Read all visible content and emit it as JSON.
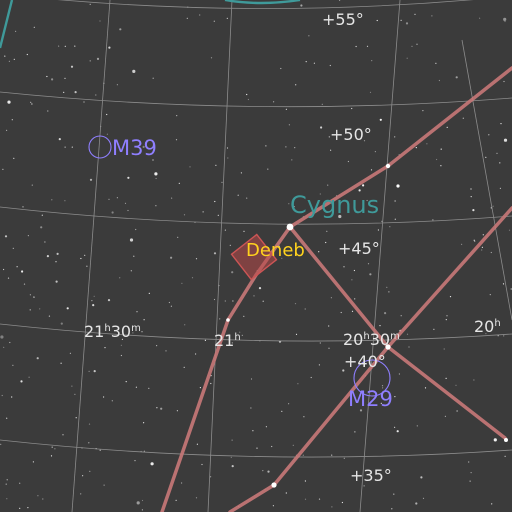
{
  "colors": {
    "background": "#3b3b3b",
    "grid": "#8c8c8c",
    "constellation_line": "#c87878",
    "constellation_name": "#3f9a9a",
    "dso": "#8f7fff",
    "highlight_star": "#ffd21e",
    "fov_box": "#b84848",
    "grid_label": "#e6e6e6"
  },
  "constellation": {
    "name": "Cygnus"
  },
  "target": {
    "name": "Deneb",
    "marker": "fov-rectangle"
  },
  "deep_sky_objects": [
    {
      "id": "m39",
      "name": "M39"
    },
    {
      "id": "m29",
      "name": "M29"
    }
  ],
  "declination_labels": [
    {
      "id": "dec55",
      "text": "+55°"
    },
    {
      "id": "dec50",
      "text": "+50°"
    },
    {
      "id": "dec45",
      "text": "+45°"
    },
    {
      "id": "dec40",
      "text": "+40°"
    },
    {
      "id": "dec35",
      "text": "+35°"
    }
  ],
  "ra_labels": [
    {
      "id": "ra2130",
      "hours": "21",
      "hsup": "h",
      "minutes": "30",
      "msup": "m"
    },
    {
      "id": "ra21",
      "hours": "21",
      "hsup": "h",
      "minutes": "",
      "msup": ""
    },
    {
      "id": "ra2030",
      "hours": "20",
      "hsup": "h",
      "minutes": "30",
      "msup": "m"
    },
    {
      "id": "ra20",
      "hours": "20",
      "hsup": "h",
      "minutes": "",
      "msup": ""
    }
  ]
}
